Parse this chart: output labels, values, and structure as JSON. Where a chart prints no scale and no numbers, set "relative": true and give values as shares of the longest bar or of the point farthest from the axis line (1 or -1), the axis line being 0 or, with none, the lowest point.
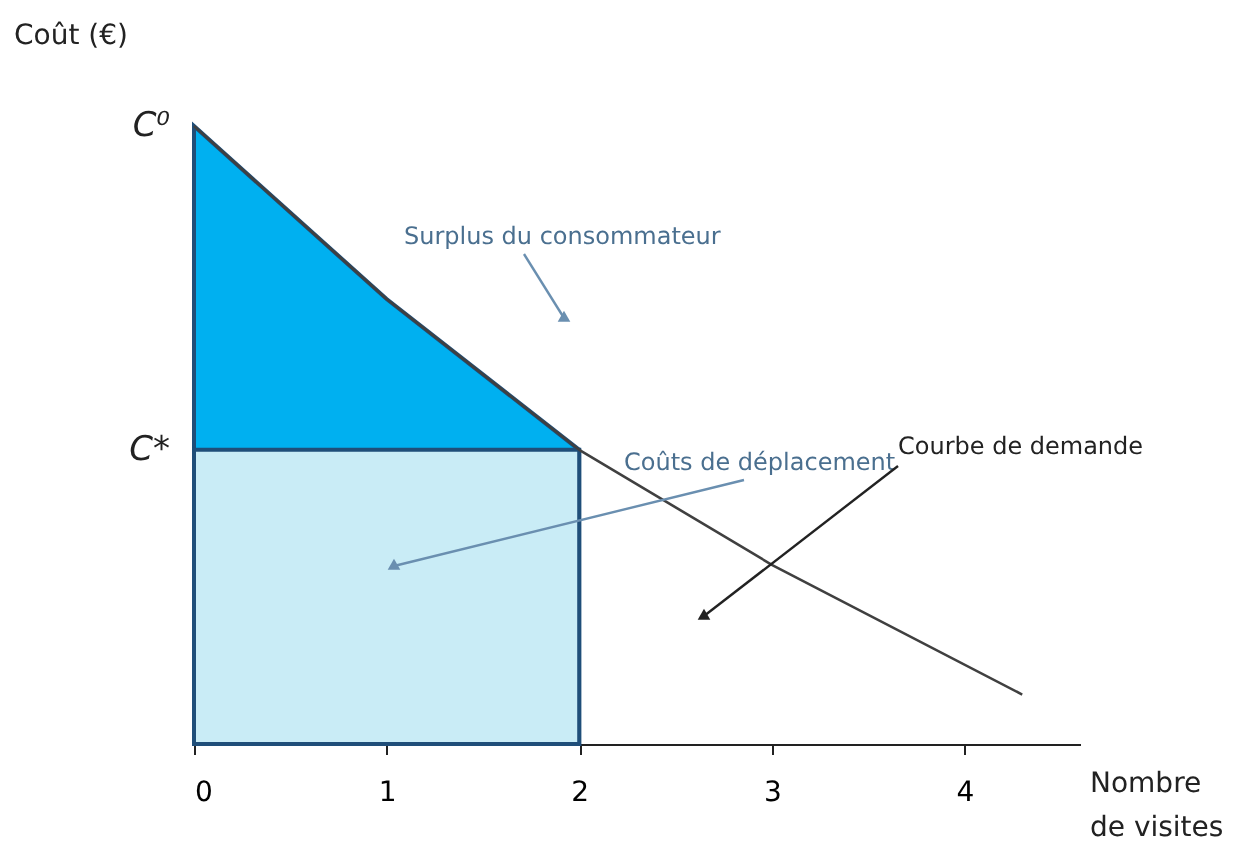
{
  "chart_data": {
    "type": "line",
    "relative": true,
    "ylabel": "Coût (€)",
    "xlabel": "Nombre de visites",
    "xlim": [
      0,
      4.6
    ],
    "xticks": [
      0,
      1,
      2,
      3,
      4
    ],
    "grid": false,
    "series": [
      {
        "type": "area",
        "color": "#00b0f0",
        "x": [
          0,
          1,
          2
        ],
        "values": [
          1,
          0.72,
          0.476
        ]
      },
      {
        "type": "area",
        "color": "#c9ecf6",
        "x": [
          0,
          2
        ],
        "values": [
          0.476,
          0.476
        ]
      },
      {
        "color": "#404040",
        "x": [
          0,
          1,
          2,
          3,
          4.3
        ],
        "values": [
          1,
          0.72,
          0.476,
          0.29,
          0.08
        ]
      }
    ],
    "annotations": [
      {
        "text": "C⁰",
        "x": 0,
        "y": 1
      },
      {
        "text": "C*",
        "x": 0,
        "y": 0.476
      },
      "Surplus du consommateur",
      "Coûts de déplacement",
      "Courbe de demande"
    ]
  }
}
